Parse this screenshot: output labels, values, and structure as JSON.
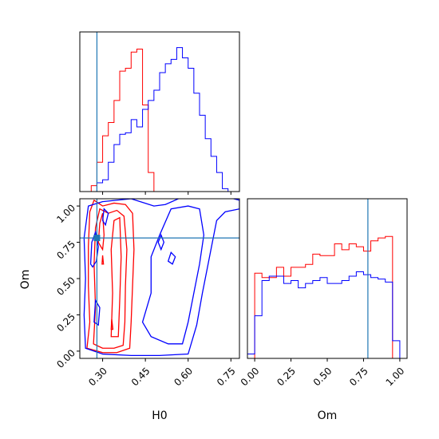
{
  "chart_data": {
    "type": "corner",
    "parameters": [
      "H0",
      "Om"
    ],
    "truths": {
      "H0": 0.28,
      "Om": 0.78
    },
    "truth_color": "#1f77b4",
    "series": [
      {
        "color": "#ff0000"
      },
      {
        "color": "#0000ff"
      }
    ],
    "histograms": {
      "H0": {
        "bins": [
          0.24,
          0.26,
          0.28,
          0.3,
          0.32,
          0.34,
          0.36,
          0.38,
          0.4,
          0.42,
          0.44,
          0.46,
          0.48,
          0.5,
          0.52,
          0.54,
          0.56,
          0.58,
          0.6,
          0.62,
          0.64,
          0.66,
          0.68,
          0.7,
          0.72,
          0.74,
          0.76,
          0.78
        ],
        "series0": [
          0,
          0.04,
          0.2,
          0.38,
          0.47,
          0.62,
          0.82,
          0.84,
          0.95,
          0.97,
          0.59,
          0.13,
          0,
          0,
          0,
          0,
          0,
          0,
          0,
          0,
          0,
          0,
          0,
          0,
          0,
          0,
          0
        ],
        "series1": [
          0,
          0,
          0.06,
          0.08,
          0.2,
          0.32,
          0.39,
          0.4,
          0.49,
          0.44,
          0.56,
          0.62,
          0.69,
          0.81,
          0.87,
          0.9,
          0.98,
          0.91,
          0.84,
          0.67,
          0.52,
          0.36,
          0.24,
          0.13,
          0.02,
          0,
          0
        ]
      },
      "Om": {
        "bins": [
          -0.05,
          0.0,
          0.05,
          0.1,
          0.15,
          0.2,
          0.25,
          0.3,
          0.35,
          0.4,
          0.45,
          0.5,
          0.55,
          0.6,
          0.65,
          0.7,
          0.75,
          0.8,
          0.85,
          0.9,
          0.95,
          1.0,
          1.05
        ],
        "series0": [
          0,
          0.58,
          0.55,
          0.55,
          0.62,
          0.56,
          0.62,
          0.62,
          0.64,
          0.71,
          0.7,
          0.7,
          0.78,
          0.74,
          0.78,
          0.76,
          0.73,
          0.8,
          0.82,
          0.83,
          0,
          0
        ],
        "series1": [
          0.03,
          0.29,
          0.53,
          0.56,
          0.56,
          0.51,
          0.53,
          0.48,
          0.51,
          0.53,
          0.55,
          0.51,
          0.51,
          0.53,
          0.56,
          0.59,
          0.57,
          0.55,
          0.54,
          0.52,
          0.12,
          0
        ]
      }
    },
    "axes": {
      "H0": {
        "label": "H0",
        "range": [
          0.22,
          0.78
        ],
        "ticks": [
          0.3,
          0.45,
          0.6,
          0.75
        ],
        "tick_labels": [
          "0.30",
          "0.45",
          "0.60",
          "0.75"
        ]
      },
      "Om": {
        "label": "Om",
        "range": [
          -0.05,
          1.05
        ],
        "ticks": [
          0.0,
          0.25,
          0.5,
          0.75,
          1.0
        ],
        "tick_labels": [
          "0.00",
          "0.25",
          "0.50",
          "0.75",
          "1.00"
        ]
      }
    },
    "contours": [
      {
        "series": 0,
        "points": [
          [
            0.245,
            0.02
          ],
          [
            0.255,
            0.2
          ],
          [
            0.25,
            0.45
          ],
          [
            0.25,
            0.72
          ],
          [
            0.255,
            0.96
          ],
          [
            0.27,
            1.04
          ],
          [
            0.3,
            1.0
          ],
          [
            0.34,
            1.02
          ],
          [
            0.38,
            1.01
          ],
          [
            0.405,
            0.95
          ],
          [
            0.41,
            0.7
          ],
          [
            0.405,
            0.45
          ],
          [
            0.4,
            0.2
          ],
          [
            0.395,
            0.02
          ],
          [
            0.35,
            -0.01
          ],
          [
            0.3,
            -0.01
          ],
          [
            0.245,
            0.02
          ]
        ]
      },
      {
        "series": 0,
        "points": [
          [
            0.268,
            0.05
          ],
          [
            0.275,
            0.3
          ],
          [
            0.27,
            0.6
          ],
          [
            0.275,
            0.85
          ],
          [
            0.29,
            0.98
          ],
          [
            0.32,
            0.95
          ],
          [
            0.35,
            0.97
          ],
          [
            0.375,
            0.93
          ],
          [
            0.385,
            0.7
          ],
          [
            0.38,
            0.45
          ],
          [
            0.378,
            0.2
          ],
          [
            0.372,
            0.04
          ],
          [
            0.34,
            0.02
          ],
          [
            0.3,
            0.02
          ],
          [
            0.268,
            0.05
          ]
        ]
      },
      {
        "series": 0,
        "points": [
          [
            0.33,
            0.1
          ],
          [
            0.335,
            0.4
          ],
          [
            0.33,
            0.7
          ],
          [
            0.34,
            0.9
          ],
          [
            0.36,
            0.92
          ],
          [
            0.365,
            0.65
          ],
          [
            0.36,
            0.35
          ],
          [
            0.355,
            0.1
          ],
          [
            0.33,
            0.1
          ]
        ]
      },
      {
        "series": 0,
        "points": [
          [
            0.285,
            0.75
          ],
          [
            0.29,
            0.88
          ],
          [
            0.3,
            0.95
          ],
          [
            0.305,
            0.8
          ],
          [
            0.3,
            0.7
          ],
          [
            0.285,
            0.75
          ]
        ]
      },
      {
        "series": 0,
        "points": [
          [
            0.33,
            0.15
          ],
          [
            0.332,
            0.22
          ],
          [
            0.336,
            0.15
          ],
          [
            0.33,
            0.15
          ]
        ]
      },
      {
        "series": 0,
        "points": [
          [
            0.298,
            0.6
          ],
          [
            0.3,
            0.66
          ],
          [
            0.303,
            0.6
          ],
          [
            0.298,
            0.6
          ]
        ]
      },
      {
        "series": 1,
        "points": [
          [
            0.24,
            0.02
          ],
          [
            0.235,
            0.25
          ],
          [
            0.24,
            0.5
          ],
          [
            0.235,
            0.78
          ],
          [
            0.25,
            1.0
          ],
          [
            0.3,
            1.03
          ],
          [
            0.4,
            1.05
          ],
          [
            0.48,
            1.0
          ],
          [
            0.52,
            1.01
          ],
          [
            0.6,
            1.08
          ],
          [
            0.7,
            1.08
          ],
          [
            0.78,
            1.04
          ],
          [
            0.78,
            0.98
          ],
          [
            0.73,
            0.96
          ],
          [
            0.7,
            0.9
          ],
          [
            0.685,
            0.75
          ],
          [
            0.67,
            0.6
          ],
          [
            0.65,
            0.4
          ],
          [
            0.63,
            0.18
          ],
          [
            0.6,
            -0.02
          ],
          [
            0.5,
            -0.03
          ],
          [
            0.4,
            -0.03
          ],
          [
            0.3,
            -0.02
          ],
          [
            0.24,
            0.02
          ]
        ]
      },
      {
        "series": 1,
        "points": [
          [
            0.44,
            0.2
          ],
          [
            0.47,
            0.4
          ],
          [
            0.47,
            0.65
          ],
          [
            0.5,
            0.8
          ],
          [
            0.54,
            0.98
          ],
          [
            0.6,
            1.0
          ],
          [
            0.64,
            0.98
          ],
          [
            0.655,
            0.8
          ],
          [
            0.64,
            0.6
          ],
          [
            0.62,
            0.4
          ],
          [
            0.6,
            0.2
          ],
          [
            0.58,
            0.05
          ],
          [
            0.53,
            0.05
          ],
          [
            0.47,
            0.1
          ],
          [
            0.44,
            0.2
          ]
        ]
      },
      {
        "series": 1,
        "points": [
          [
            0.258,
            0.6
          ],
          [
            0.262,
            0.75
          ],
          [
            0.275,
            0.82
          ],
          [
            0.285,
            0.72
          ],
          [
            0.278,
            0.62
          ],
          [
            0.265,
            0.58
          ],
          [
            0.258,
            0.6
          ]
        ]
      },
      {
        "series": 1,
        "points": [
          [
            0.3,
            0.9
          ],
          [
            0.305,
            0.98
          ],
          [
            0.32,
            0.95
          ],
          [
            0.31,
            0.87
          ],
          [
            0.3,
            0.9
          ]
        ]
      },
      {
        "series": 1,
        "points": [
          [
            0.27,
            0.2
          ],
          [
            0.275,
            0.35
          ],
          [
            0.29,
            0.3
          ],
          [
            0.285,
            0.18
          ],
          [
            0.27,
            0.2
          ]
        ]
      },
      {
        "series": 1,
        "points": [
          [
            0.495,
            0.75
          ],
          [
            0.505,
            0.8
          ],
          [
            0.515,
            0.75
          ],
          [
            0.505,
            0.7
          ],
          [
            0.495,
            0.75
          ]
        ]
      },
      {
        "series": 1,
        "points": [
          [
            0.53,
            0.62
          ],
          [
            0.54,
            0.68
          ],
          [
            0.555,
            0.65
          ],
          [
            0.545,
            0.6
          ],
          [
            0.53,
            0.62
          ]
        ]
      }
    ]
  }
}
